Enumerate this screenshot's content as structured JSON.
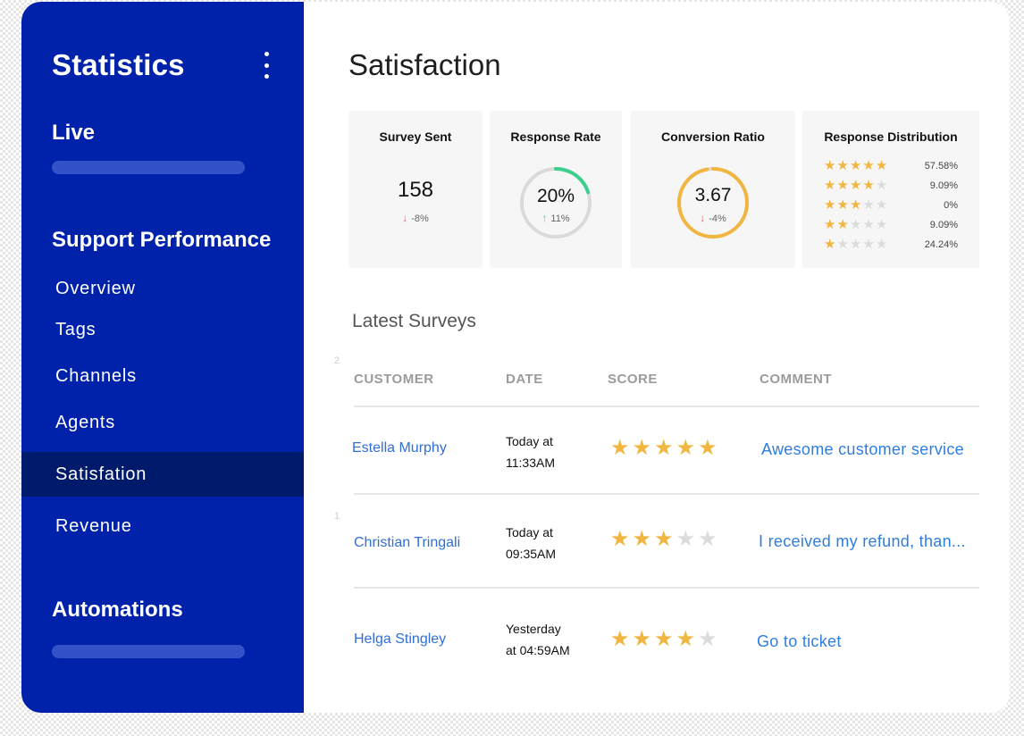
{
  "sidebar": {
    "title": "Statistics",
    "menu_icon": "more-vertical-icon",
    "sections": {
      "live": "Live",
      "support_performance": "Support Performance",
      "automations": "Automations"
    },
    "items": [
      {
        "label": "Overview"
      },
      {
        "label": "Tags"
      },
      {
        "label": "Channels"
      },
      {
        "label": "Agents"
      },
      {
        "label": "Satisfation",
        "active": true
      },
      {
        "label": "Revenue"
      }
    ],
    "colors": {
      "background": "#0022aa",
      "active": "#001a6b",
      "placeholder_bar": "#3352c8"
    }
  },
  "page": {
    "title": "Satisfaction"
  },
  "stats": {
    "survey_sent": {
      "title": "Survey Sent",
      "value": "158",
      "delta": "-8%"
    },
    "response_rate": {
      "title": "Response Rate",
      "value": "20%",
      "delta": "11%",
      "progress": 0.2,
      "color": "#3ccf8e"
    },
    "conversion_ratio": {
      "title": "Conversion Ratio",
      "value": "3.67",
      "delta": "-4%",
      "progress": 0.97,
      "color": "#f1b640"
    },
    "response_distribution": {
      "title": "Response Distribution",
      "rows": [
        {
          "stars": 5,
          "pct": "57.58%"
        },
        {
          "stars": 4,
          "pct": "9.09%"
        },
        {
          "stars": 3,
          "pct": "0%"
        },
        {
          "stars": 2,
          "pct": "9.09%"
        },
        {
          "stars": 1,
          "pct": "24.24%"
        }
      ]
    }
  },
  "surveys": {
    "title": "Latest Surveys",
    "side_numbers": [
      "2",
      "1"
    ],
    "columns": [
      "CUSTOMER",
      "DATE",
      "SCORE",
      "COMMENT"
    ],
    "rows": [
      {
        "customer": "Estella Murphy",
        "date_line1": "Today at",
        "date_line2": "11:33AM",
        "score": 5,
        "comment": "Awesome customer service"
      },
      {
        "customer": "Christian Tringali",
        "date_line1": "Today at",
        "date_line2": "09:35AM",
        "score": 3,
        "comment": "I received my refund, than..."
      },
      {
        "customer": "Helga Stingley",
        "date_line1": "Yesterday",
        "date_line2": "at 04:59AM",
        "score": 4,
        "comment": "Go to ticket"
      }
    ]
  }
}
